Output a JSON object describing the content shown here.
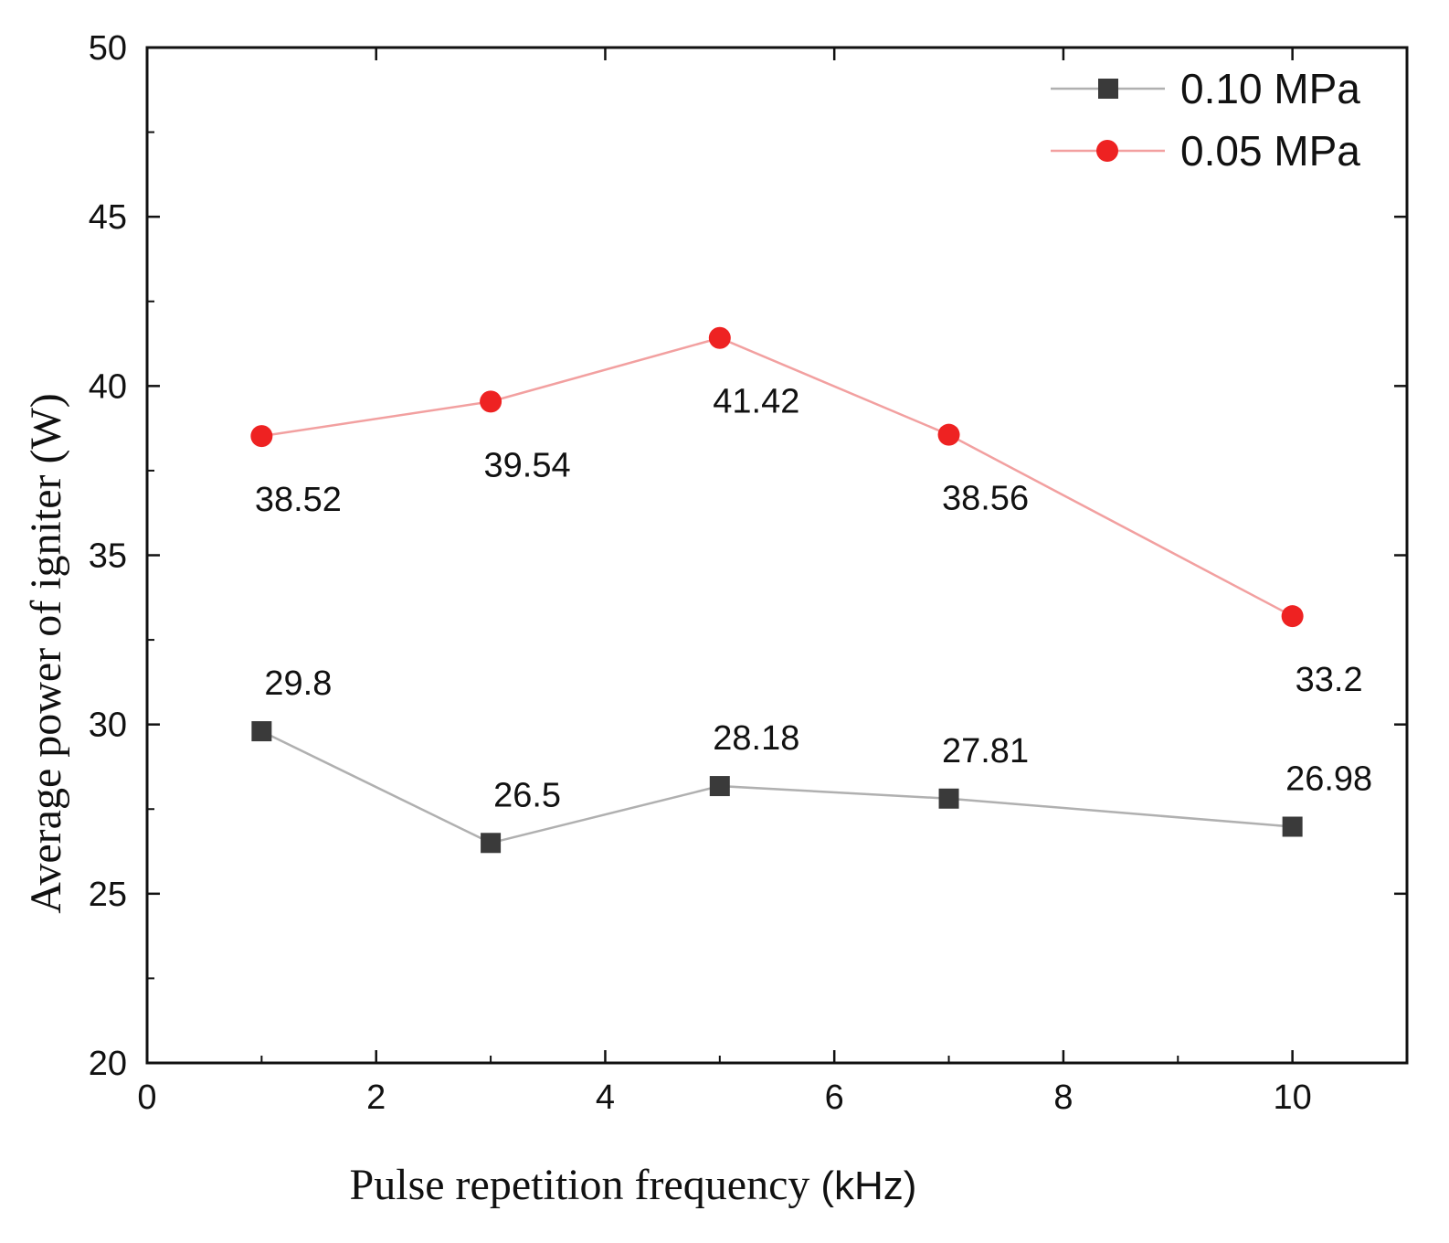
{
  "chart_data": {
    "type": "line",
    "title": "",
    "xlabel": "Pulse repetition frequency",
    "xlabel_unit": "(kHz)",
    "ylabel": "Average power of igniter (W)",
    "xlim": [
      0,
      11
    ],
    "ylim": [
      20,
      50
    ],
    "xticks": [
      0,
      2,
      4,
      6,
      8,
      10
    ],
    "yticks": [
      20,
      25,
      30,
      35,
      40,
      45,
      50
    ],
    "grid": false,
    "legend_position": "top-right",
    "series": [
      {
        "name": "0.10 MPa",
        "marker": "square",
        "color": "#3a3a3a",
        "line_color": "#b0b0b0",
        "x": [
          1,
          3,
          5,
          7,
          10
        ],
        "values": [
          29.8,
          26.5,
          28.18,
          27.81,
          26.98
        ],
        "labels": [
          "29.8",
          "26.5",
          "28.18",
          "27.81",
          "26.98"
        ],
        "label_position": "above"
      },
      {
        "name": "0.05 MPa",
        "marker": "circle",
        "color": "#ee2222",
        "line_color": "#f2a0a0",
        "x": [
          1,
          3,
          5,
          7,
          10
        ],
        "values": [
          38.52,
          39.54,
          41.42,
          38.56,
          33.2
        ],
        "labels": [
          "38.52",
          "39.54",
          "41.42",
          "38.56",
          "33.2"
        ],
        "label_position": "below"
      }
    ]
  }
}
